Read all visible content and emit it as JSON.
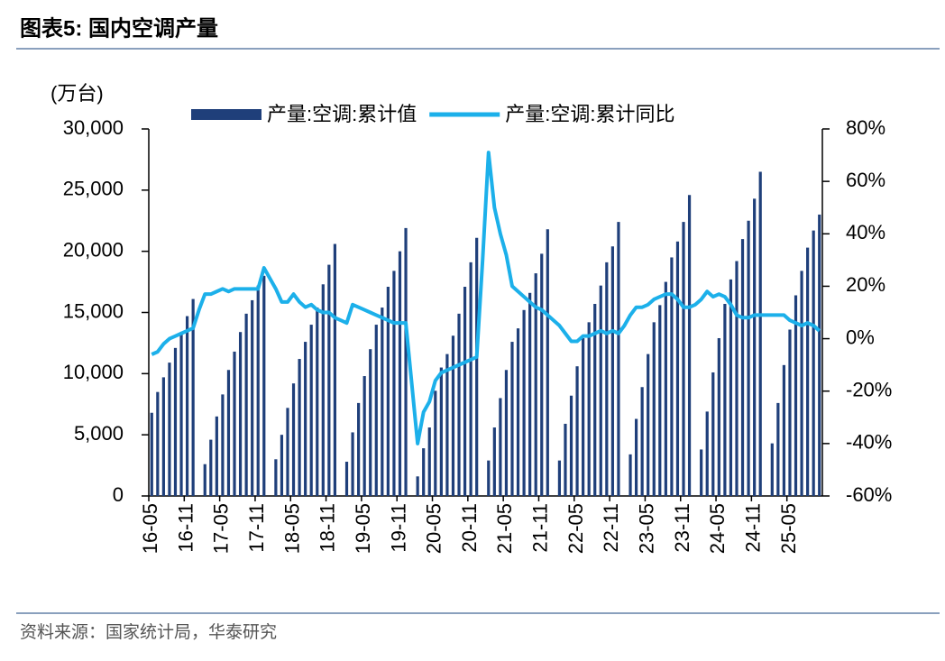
{
  "chart_data": {
    "type": "bar-line",
    "title": "图表5:   国内空调产量",
    "ylabel": "(万台)",
    "source": "资料来源：国家统计局，华泰研究",
    "legend": "top",
    "categories": [
      "16-05",
      null,
      null,
      null,
      null,
      null,
      "16-11",
      null,
      null,
      null,
      null,
      null,
      "17-05",
      null,
      null,
      null,
      null,
      null,
      "17-11",
      null,
      null,
      null,
      null,
      null,
      "18-05",
      null,
      null,
      null,
      null,
      null,
      "18-11",
      null,
      null,
      null,
      null,
      null,
      "19-05",
      null,
      null,
      null,
      null,
      null,
      "19-11",
      null,
      null,
      null,
      null,
      null,
      "20-05",
      null,
      null,
      null,
      null,
      null,
      "20-11",
      null,
      null,
      null,
      null,
      null,
      "21-05",
      null,
      null,
      null,
      null,
      null,
      "21-11",
      null,
      null,
      null,
      null,
      null,
      "22-05",
      null,
      null,
      null,
      null,
      null,
      "22-11",
      null,
      null,
      null,
      null,
      null,
      "23-05",
      null,
      null,
      null,
      null,
      null,
      "23-11",
      null,
      null,
      null,
      null,
      null,
      "24-05",
      null,
      null,
      null,
      null,
      null,
      "24-11",
      null,
      null,
      null,
      null,
      null,
      "25-05",
      null,
      null,
      null,
      null,
      null
    ],
    "series": [
      {
        "name": "产量:空调:累计值",
        "color": "#1f3f7a",
        "kind": "bar",
        "values": [
          6800,
          8500,
          9700,
          10900,
          12100,
          13300,
          14700,
          16100,
          null,
          2600,
          4600,
          6500,
          8300,
          10300,
          11800,
          13400,
          14900,
          16000,
          17200,
          18000,
          null,
          3000,
          5000,
          7200,
          9200,
          11200,
          12600,
          14000,
          15400,
          17300,
          18900,
          20600,
          null,
          2800,
          5200,
          7600,
          9800,
          12000,
          14000,
          15400,
          17100,
          18400,
          20000,
          21900,
          null,
          1600,
          3900,
          5600,
          8600,
          10500,
          11600,
          13100,
          14900,
          17100,
          19100,
          21100,
          null,
          2900,
          5600,
          8000,
          10300,
          12600,
          13700,
          15200,
          16600,
          18200,
          19800,
          21800,
          null,
          2900,
          5900,
          8200,
          10600,
          12900,
          14200,
          15700,
          17200,
          19100,
          20400,
          22400,
          null,
          3400,
          6300,
          8900,
          11600,
          14200,
          15600,
          17500,
          19500,
          20800,
          22400,
          24600,
          null,
          3800,
          6900,
          10100,
          12900,
          15700,
          17700,
          19200,
          21000,
          22500,
          24300,
          26500,
          null,
          4300,
          7600,
          10700,
          13600,
          16400,
          18400,
          20300,
          21700,
          23000
        ]
      },
      {
        "name": "产量:空调:累计同比",
        "color": "#1cb0ea",
        "kind": "line",
        "axis": "y2",
        "values": [
          -6,
          -5,
          -2,
          0,
          1,
          2,
          3,
          4,
          11,
          17,
          17,
          18,
          19,
          18,
          19,
          19,
          19,
          19,
          19,
          27,
          23,
          19,
          14,
          14,
          17,
          14,
          12,
          13,
          11,
          10,
          10,
          8,
          7,
          6,
          13,
          12,
          11,
          10,
          9,
          8,
          7,
          6,
          6,
          6,
          -17,
          -40,
          -28,
          -24,
          -16,
          -13,
          -12,
          -11,
          -10,
          -9,
          -8,
          -7,
          30,
          71,
          50,
          40,
          32,
          20,
          18,
          16,
          14,
          12,
          11,
          9,
          7,
          5,
          2,
          -1,
          -1,
          1,
          1,
          2,
          3,
          2,
          3,
          2,
          5,
          9,
          12,
          12,
          13,
          15,
          16,
          17,
          17,
          15,
          12,
          12,
          13,
          15,
          18,
          16,
          17,
          16,
          13,
          9,
          8,
          8,
          9,
          9,
          9,
          9,
          9,
          9,
          7,
          6,
          5,
          6,
          5,
          3
        ]
      }
    ],
    "ylim": [
      0,
      30000
    ],
    "yticks": [
      0,
      {
        "value": 5000,
        "label": "5,000"
      },
      {
        "value": 10000,
        "label": "10,000"
      },
      {
        "value": 15000,
        "label": "15,000"
      },
      {
        "value": 20000,
        "label": "20,000"
      },
      {
        "value": 25000,
        "label": "25,000"
      },
      {
        "value": 30000,
        "label": "30,000"
      }
    ],
    "y2lim": [
      -60,
      80
    ],
    "y2ticks": [
      {
        "value": -60,
        "label": "-60%"
      },
      {
        "value": -40,
        "label": "-40%"
      },
      {
        "value": -20,
        "label": "-20%"
      },
      {
        "value": 0,
        "label": "0%"
      },
      {
        "value": 20,
        "label": "20%"
      },
      {
        "value": 40,
        "label": "40%"
      },
      {
        "value": 60,
        "label": "60%"
      },
      {
        "value": 80,
        "label": "80%"
      }
    ]
  }
}
